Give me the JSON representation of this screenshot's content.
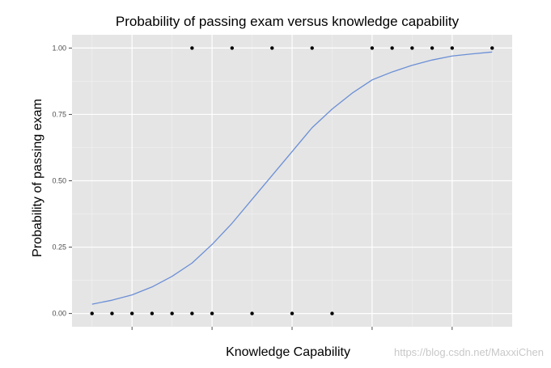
{
  "chart_data": {
    "type": "scatter",
    "title": "Probability of passing exam versus knowledge capability",
    "xlabel": "Knowledge Capability",
    "ylabel": "Probability of passing exam",
    "xlim": [
      0.25,
      5.75
    ],
    "ylim": [
      -0.05,
      1.05
    ],
    "x_ticks": [
      1,
      2,
      3,
      4,
      5
    ],
    "x_tick_labels": [
      "",
      "",
      "",
      "",
      ""
    ],
    "y_ticks": [
      0,
      0.25,
      0.5,
      0.75,
      1
    ],
    "y_tick_labels": [
      "0.00",
      "0.25",
      "0.50",
      "0.75",
      "1.00"
    ],
    "grid": true,
    "legend": "none",
    "series": [
      {
        "kind": "points",
        "color": "#000000",
        "points": [
          {
            "x": 0.5,
            "y": 0
          },
          {
            "x": 0.75,
            "y": 0
          },
          {
            "x": 1.0,
            "y": 0
          },
          {
            "x": 1.25,
            "y": 0
          },
          {
            "x": 1.5,
            "y": 0
          },
          {
            "x": 1.75,
            "y": 0
          },
          {
            "x": 2.0,
            "y": 0
          },
          {
            "x": 2.5,
            "y": 0
          },
          {
            "x": 3.0,
            "y": 0
          },
          {
            "x": 3.5,
            "y": 0
          },
          {
            "x": 1.75,
            "y": 1
          },
          {
            "x": 2.25,
            "y": 1
          },
          {
            "x": 2.75,
            "y": 1
          },
          {
            "x": 3.25,
            "y": 1
          },
          {
            "x": 4.0,
            "y": 1
          },
          {
            "x": 4.25,
            "y": 1
          },
          {
            "x": 4.5,
            "y": 1
          },
          {
            "x": 4.75,
            "y": 1
          },
          {
            "x": 5.0,
            "y": 1
          },
          {
            "x": 5.5,
            "y": 1
          }
        ]
      },
      {
        "kind": "curve",
        "color": "#6b8fd6",
        "points": [
          {
            "x": 0.5,
            "y": 0.035
          },
          {
            "x": 0.75,
            "y": 0.05
          },
          {
            "x": 1.0,
            "y": 0.07
          },
          {
            "x": 1.25,
            "y": 0.1
          },
          {
            "x": 1.5,
            "y": 0.14
          },
          {
            "x": 1.75,
            "y": 0.19
          },
          {
            "x": 2.0,
            "y": 0.26
          },
          {
            "x": 2.25,
            "y": 0.34
          },
          {
            "x": 2.5,
            "y": 0.43
          },
          {
            "x": 2.75,
            "y": 0.52
          },
          {
            "x": 3.0,
            "y": 0.61
          },
          {
            "x": 3.25,
            "y": 0.7
          },
          {
            "x": 3.5,
            "y": 0.77
          },
          {
            "x": 3.75,
            "y": 0.83
          },
          {
            "x": 4.0,
            "y": 0.88
          },
          {
            "x": 4.25,
            "y": 0.91
          },
          {
            "x": 4.5,
            "y": 0.935
          },
          {
            "x": 4.75,
            "y": 0.955
          },
          {
            "x": 5.0,
            "y": 0.97
          },
          {
            "x": 5.25,
            "y": 0.978
          },
          {
            "x": 5.5,
            "y": 0.985
          }
        ]
      }
    ]
  },
  "watermark": "https://blog.csdn.net/MaxxiChen",
  "colors": {
    "panel": "#e5e5e5",
    "grid_major": "#ffffff",
    "grid_minor": "#f2f2f2"
  }
}
